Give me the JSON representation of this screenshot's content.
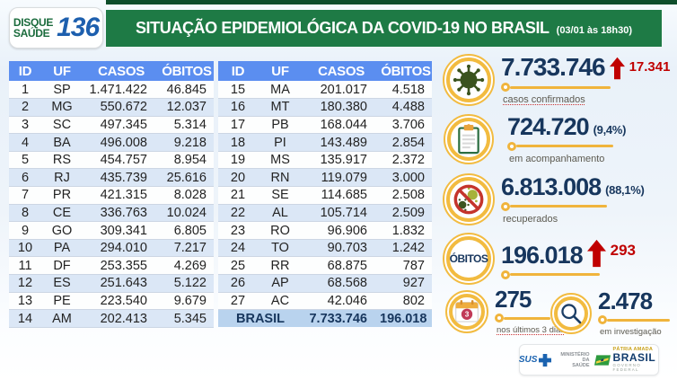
{
  "header": {
    "logo_line1": "DISQUE",
    "logo_line2": "SAÚDE",
    "logo_number": "136",
    "title": "SITUAÇÃO EPIDEMIOLÓGICA DA COVID-19 NO BRASIL",
    "timestamp": "(03/01 às 18h30)"
  },
  "tables": {
    "columns": [
      "ID",
      "UF",
      "CASOS",
      "ÓBITOS"
    ],
    "left_rows": [
      [
        "1",
        "SP",
        "1.471.422",
        "46.845"
      ],
      [
        "2",
        "MG",
        "550.672",
        "12.037"
      ],
      [
        "3",
        "SC",
        "497.345",
        "5.314"
      ],
      [
        "4",
        "BA",
        "496.008",
        "9.218"
      ],
      [
        "5",
        "RS",
        "454.757",
        "8.954"
      ],
      [
        "6",
        "RJ",
        "435.739",
        "25.616"
      ],
      [
        "7",
        "PR",
        "421.315",
        "8.028"
      ],
      [
        "8",
        "CE",
        "336.763",
        "10.024"
      ],
      [
        "9",
        "GO",
        "309.341",
        "6.805"
      ],
      [
        "10",
        "PA",
        "294.010",
        "7.217"
      ],
      [
        "11",
        "DF",
        "253.355",
        "4.269"
      ],
      [
        "12",
        "ES",
        "251.643",
        "5.122"
      ],
      [
        "13",
        "PE",
        "223.540",
        "9.679"
      ],
      [
        "14",
        "AM",
        "202.413",
        "5.345"
      ]
    ],
    "right_rows": [
      [
        "15",
        "MA",
        "201.017",
        "4.518"
      ],
      [
        "16",
        "MT",
        "180.380",
        "4.488"
      ],
      [
        "17",
        "PB",
        "168.044",
        "3.706"
      ],
      [
        "18",
        "PI",
        "143.489",
        "2.854"
      ],
      [
        "19",
        "MS",
        "135.917",
        "2.372"
      ],
      [
        "20",
        "RN",
        "119.079",
        "3.000"
      ],
      [
        "21",
        "SE",
        "114.685",
        "2.508"
      ],
      [
        "22",
        "AL",
        "105.714",
        "2.509"
      ],
      [
        "23",
        "RO",
        "96.906",
        "1.832"
      ],
      [
        "24",
        "TO",
        "90.703",
        "1.242"
      ],
      [
        "25",
        "RR",
        "68.875",
        "787"
      ],
      [
        "26",
        "AP",
        "68.568",
        "927"
      ],
      [
        "27",
        "AC",
        "42.046",
        "802"
      ]
    ],
    "total": {
      "label": "BRASIL",
      "casos": "7.733.746",
      "obitos": "196.018"
    }
  },
  "stats": {
    "confirmed": {
      "value": "7.733.746",
      "delta": "17.341",
      "label": "casos confirmados",
      "icon": "virus-icon"
    },
    "monitoring": {
      "value": "724.720",
      "percent": "(9,4%)",
      "label": "em acompanhamento",
      "icon": "clipboard-icon"
    },
    "recovered": {
      "value": "6.813.008",
      "percent": "(88,1%)",
      "label": "recuperados",
      "icon": "no-virus-icon"
    },
    "deaths": {
      "value": "196.018",
      "delta": "293",
      "label": "ÓBITOS",
      "icon": "obitos-circle"
    },
    "last3days": {
      "value": "275",
      "label": "nos últimos 3 dias",
      "icon": "calendar-icon"
    },
    "investigation": {
      "value": "2.478",
      "label": "em investigação",
      "icon": "magnifier-icon"
    }
  },
  "footer": {
    "sus": "SUS",
    "ministry_line1": "MINISTÉRIO DA",
    "ministry_line2": "SAÚDE",
    "patria": "PÁTRIA AMADA",
    "brasil": "BRASIL",
    "governo": "GOVERNO FEDERAL"
  },
  "colors": {
    "banner_green": "#1e7a45",
    "stripe_green": "#0e4e2b",
    "table_header_blue": "#5b8ef0",
    "row_alt_blue": "#dbe7f6",
    "total_row_blue": "#b9d3ee",
    "navy": "#17365d",
    "alert_red": "#c00000",
    "gold": "#f0b43c"
  },
  "chart_data": {
    "type": "table",
    "title": "SITUAÇÃO EPIDEMIOLÓGICA DA COVID-19 NO BRASIL",
    "as_of": "03/01 às 18h30",
    "columns": [
      "ID",
      "UF",
      "CASOS",
      "ÓBITOS"
    ],
    "rows": [
      [
        1,
        "SP",
        1471422,
        46845
      ],
      [
        2,
        "MG",
        550672,
        12037
      ],
      [
        3,
        "SC",
        497345,
        5314
      ],
      [
        4,
        "BA",
        496008,
        9218
      ],
      [
        5,
        "RS",
        454757,
        8954
      ],
      [
        6,
        "RJ",
        435739,
        25616
      ],
      [
        7,
        "PR",
        421315,
        8028
      ],
      [
        8,
        "CE",
        336763,
        10024
      ],
      [
        9,
        "GO",
        309341,
        6805
      ],
      [
        10,
        "PA",
        294010,
        7217
      ],
      [
        11,
        "DF",
        253355,
        4269
      ],
      [
        12,
        "ES",
        251643,
        5122
      ],
      [
        13,
        "PE",
        223540,
        9679
      ],
      [
        14,
        "AM",
        202413,
        5345
      ],
      [
        15,
        "MA",
        201017,
        4518
      ],
      [
        16,
        "MT",
        180380,
        4488
      ],
      [
        17,
        "PB",
        168044,
        3706
      ],
      [
        18,
        "PI",
        143489,
        2854
      ],
      [
        19,
        "MS",
        135917,
        2372
      ],
      [
        20,
        "RN",
        119079,
        3000
      ],
      [
        21,
        "SE",
        114685,
        2508
      ],
      [
        22,
        "AL",
        105714,
        2509
      ],
      [
        23,
        "RO",
        96906,
        1832
      ],
      [
        24,
        "TO",
        90703,
        1242
      ],
      [
        25,
        "RR",
        68875,
        787
      ],
      [
        26,
        "AP",
        68568,
        927
      ],
      [
        27,
        "AC",
        42046,
        802
      ]
    ],
    "total": {
      "label": "BRASIL",
      "casos": 7733746,
      "obitos": 196018
    },
    "summary": {
      "casos_confirmados": 7733746,
      "novos_casos": 17341,
      "em_acompanhamento": 724720,
      "em_acompanhamento_pct": "9,4%",
      "recuperados": 6813008,
      "recuperados_pct": "88,1%",
      "obitos": 196018,
      "novos_obitos": 293,
      "obitos_ultimos_3_dias": 275,
      "em_investigacao": 2478
    }
  }
}
